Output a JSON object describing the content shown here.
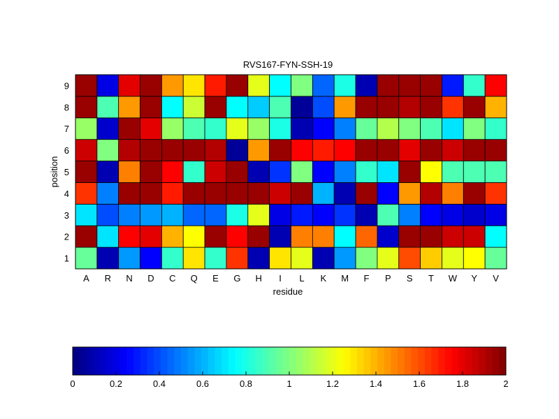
{
  "chart_data": {
    "type": "heatmap",
    "title": "RVS167-FYN-SSH-19",
    "xlabel": "residue",
    "ylabel": "position",
    "x_categories": [
      "A",
      "R",
      "N",
      "D",
      "C",
      "Q",
      "E",
      "G",
      "H",
      "I",
      "L",
      "K",
      "M",
      "F",
      "P",
      "S",
      "T",
      "W",
      "Y",
      "V"
    ],
    "y_categories": [
      "1",
      "2",
      "3",
      "4",
      "5",
      "6",
      "7",
      "8",
      "9"
    ],
    "color_range": [
      0,
      2
    ],
    "colormap": "jet",
    "colorbar_ticks": [
      "0",
      "0.2",
      "0.4",
      "0.6",
      "0.8",
      "1",
      "1.2",
      "1.4",
      "1.6",
      "1.8",
      "2"
    ],
    "colorbar_tick_values": [
      0,
      0.2,
      0.4,
      0.6,
      0.8,
      1,
      1.2,
      1.4,
      1.6,
      1.8,
      2
    ],
    "values": [
      [
        0.95,
        0.1,
        0.55,
        0.25,
        0.85,
        1.3,
        0.85,
        1.65,
        0.1,
        1.3,
        1.2,
        0.1,
        0.55,
        1.0,
        1.2,
        1.6,
        1.35,
        1.2,
        1.25,
        0.95
      ],
      [
        1.95,
        0.7,
        1.75,
        1.8,
        1.4,
        1.25,
        1.95,
        1.75,
        1.95,
        0.1,
        1.5,
        1.5,
        0.75,
        1.55,
        0.15,
        1.95,
        1.95,
        1.85,
        1.85,
        0.75
      ],
      [
        0.7,
        0.4,
        0.5,
        0.55,
        0.6,
        0.45,
        0.45,
        0.8,
        1.2,
        0.2,
        0.3,
        0.25,
        0.35,
        0.1,
        0.9,
        0.5,
        0.25,
        0.2,
        0.15,
        0.2
      ],
      [
        1.65,
        0.5,
        1.95,
        1.95,
        1.7,
        1.95,
        1.95,
        1.95,
        1.95,
        1.85,
        1.95,
        0.6,
        0.1,
        1.95,
        0.25,
        1.45,
        1.9,
        1.5,
        1.95,
        1.65
      ],
      [
        1.95,
        0.1,
        1.5,
        1.95,
        1.75,
        0.85,
        1.85,
        1.95,
        0.1,
        0.35,
        1.0,
        0.25,
        0.5,
        0.85,
        0.7,
        1.95,
        1.25,
        0.9,
        0.9,
        0.9
      ],
      [
        1.85,
        1.0,
        1.9,
        1.95,
        1.95,
        1.95,
        1.9,
        0.05,
        1.45,
        1.95,
        1.75,
        1.7,
        1.75,
        1.95,
        1.95,
        1.8,
        1.95,
        1.85,
        1.95,
        1.95
      ],
      [
        1.05,
        0.15,
        1.95,
        1.8,
        1.05,
        0.9,
        0.85,
        1.2,
        1.05,
        0.8,
        0.1,
        0.25,
        0.5,
        0.95,
        1.1,
        1.0,
        0.9,
        0.7,
        1.0,
        0.85
      ],
      [
        1.95,
        0.9,
        1.45,
        1.95,
        0.75,
        1.15,
        1.95,
        0.75,
        0.65,
        0.9,
        0.05,
        0.4,
        1.45,
        1.95,
        1.95,
        1.9,
        1.95,
        1.65,
        1.95,
        1.4
      ],
      [
        1.95,
        0.2,
        1.8,
        1.95,
        1.45,
        1.3,
        1.7,
        1.95,
        1.2,
        0.75,
        1.0,
        0.45,
        0.8,
        0.1,
        1.95,
        1.95,
        1.95,
        0.3,
        0.85,
        1.75
      ]
    ]
  }
}
